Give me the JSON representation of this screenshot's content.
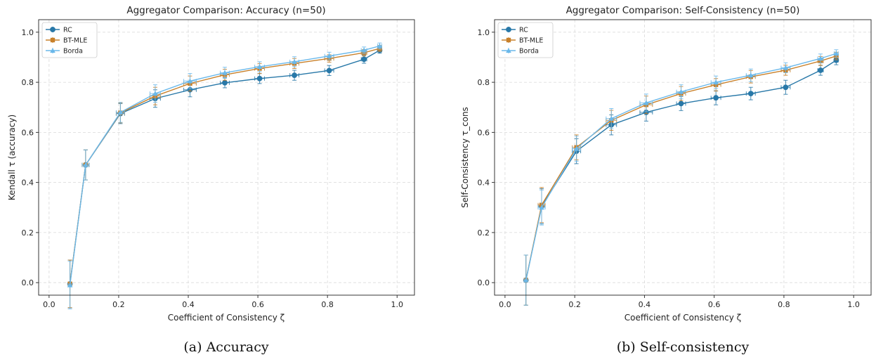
{
  "colors": {
    "RC": "#2878a8",
    "BT-MLE": "#c8802a",
    "Borda": "#6ab8ea"
  },
  "captions": [
    "(a) Accuracy",
    "(b) Self-consistency"
  ],
  "chart_data": [
    {
      "type": "line",
      "title": "Aggregator Comparison: Accuracy (n=50)",
      "xlabel": "Coefficient of Consistency ζ",
      "ylabel": "Kendall τ (accuracy)",
      "xlim": [
        -0.03,
        1.05
      ],
      "ylim": [
        -0.05,
        1.05
      ],
      "xticks": [
        "0.0",
        "0.2",
        "0.4",
        "0.6",
        "0.8",
        "1.0"
      ],
      "yticks": [
        "0.0",
        "0.2",
        "0.4",
        "0.6",
        "0.8",
        "1.0"
      ],
      "grid": true,
      "legend_position": "top-left",
      "x": [
        0.06,
        0.105,
        0.205,
        0.305,
        0.405,
        0.505,
        0.605,
        0.705,
        0.805,
        0.905,
        0.95
      ],
      "series": [
        {
          "name": "RC",
          "marker": "circle",
          "values": [
            -0.005,
            0.47,
            0.675,
            0.735,
            0.77,
            0.798,
            0.815,
            0.828,
            0.847,
            0.892,
            0.928
          ],
          "yerr": [
            0.095,
            0.06,
            0.04,
            0.035,
            0.028,
            0.02,
            0.02,
            0.02,
            0.02,
            0.016,
            0.012
          ]
        },
        {
          "name": "BT-MLE",
          "marker": "square",
          "values": [
            -0.005,
            0.47,
            0.678,
            0.745,
            0.795,
            0.83,
            0.855,
            0.875,
            0.895,
            0.918,
            0.935
          ],
          "yerr": [
            0.095,
            0.06,
            0.04,
            0.035,
            0.03,
            0.022,
            0.02,
            0.02,
            0.015,
            0.013,
            0.012
          ]
        },
        {
          "name": "Borda",
          "marker": "triangle",
          "values": [
            -0.01,
            0.47,
            0.68,
            0.755,
            0.805,
            0.838,
            0.862,
            0.882,
            0.905,
            0.928,
            0.945
          ],
          "yerr": [
            0.095,
            0.06,
            0.04,
            0.035,
            0.03,
            0.022,
            0.02,
            0.02,
            0.015,
            0.013,
            0.012
          ]
        }
      ]
    },
    {
      "type": "line",
      "title": "Aggregator Comparison: Self-Consistency (n=50)",
      "xlabel": "Coefficient of Consistency ζ",
      "ylabel": "Self-Consistency τ_cons",
      "xlim": [
        -0.03,
        1.05
      ],
      "ylim": [
        -0.05,
        1.05
      ],
      "xticks": [
        "0.0",
        "0.2",
        "0.4",
        "0.6",
        "0.8",
        "1.0"
      ],
      "yticks": [
        "0.0",
        "0.2",
        "0.4",
        "0.6",
        "0.8",
        "1.0"
      ],
      "grid": true,
      "legend_position": "top-left",
      "x": [
        0.06,
        0.105,
        0.205,
        0.305,
        0.405,
        0.505,
        0.605,
        0.705,
        0.805,
        0.905,
        0.95
      ],
      "series": [
        {
          "name": "RC",
          "marker": "circle",
          "values": [
            0.01,
            0.305,
            0.525,
            0.63,
            0.68,
            0.715,
            0.738,
            0.755,
            0.78,
            0.848,
            0.888
          ],
          "yerr": [
            0.1,
            0.07,
            0.05,
            0.04,
            0.035,
            0.028,
            0.028,
            0.025,
            0.028,
            0.02,
            0.018
          ]
        },
        {
          "name": "BT-MLE",
          "marker": "square",
          "values": [
            0.01,
            0.31,
            0.54,
            0.648,
            0.71,
            0.755,
            0.79,
            0.822,
            0.848,
            0.885,
            0.905
          ],
          "yerr": [
            0.1,
            0.07,
            0.05,
            0.04,
            0.035,
            0.028,
            0.025,
            0.025,
            0.02,
            0.018,
            0.015
          ]
        },
        {
          "name": "Borda",
          "marker": "triangle",
          "values": [
            0.01,
            0.3,
            0.535,
            0.655,
            0.718,
            0.762,
            0.8,
            0.828,
            0.858,
            0.895,
            0.915
          ],
          "yerr": [
            0.1,
            0.07,
            0.05,
            0.04,
            0.035,
            0.028,
            0.025,
            0.025,
            0.02,
            0.018,
            0.015
          ]
        }
      ]
    }
  ]
}
